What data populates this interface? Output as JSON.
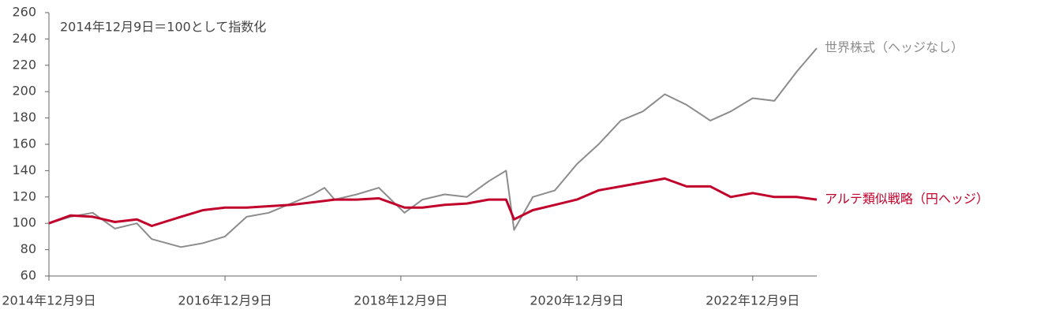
{
  "chart_data": {
    "type": "line",
    "annotation": "2014年12月9日＝100として指数化",
    "x": [
      "2014-12-09",
      "2015-03-09",
      "2015-06-09",
      "2015-09-09",
      "2015-12-09",
      "2016-02-09",
      "2016-06-09",
      "2016-09-09",
      "2016-12-09",
      "2017-03-09",
      "2017-06-09",
      "2017-09-09",
      "2017-12-09",
      "2018-01-26",
      "2018-03-09",
      "2018-06-09",
      "2018-09-09",
      "2018-12-24",
      "2019-03-09",
      "2019-06-09",
      "2019-09-09",
      "2019-12-09",
      "2020-02-19",
      "2020-03-23",
      "2020-06-09",
      "2020-09-09",
      "2020-12-09",
      "2021-03-09",
      "2021-06-09",
      "2021-09-09",
      "2021-12-09",
      "2022-03-09",
      "2022-06-16",
      "2022-09-09",
      "2022-12-09",
      "2023-03-09",
      "2023-06-09",
      "2023-09-01"
    ],
    "series": [
      {
        "name": "世界株式（ヘッジなし）",
        "color": "#8c8c8c",
        "values": [
          100,
          105,
          108,
          96,
          100,
          88,
          82,
          85,
          90,
          105,
          108,
          115,
          122,
          127,
          118,
          122,
          127,
          108,
          118,
          122,
          120,
          132,
          140,
          95,
          120,
          125,
          145,
          160,
          178,
          185,
          198,
          190,
          178,
          185,
          195,
          193,
          215,
          233
        ]
      },
      {
        "name": "アルテ類似戦略（円ヘッジ）",
        "color": "#c0002a",
        "values": [
          100,
          106,
          105,
          101,
          103,
          98,
          105,
          110,
          112,
          112,
          113,
          114,
          116,
          117,
          118,
          118,
          119,
          112,
          112,
          114,
          115,
          118,
          118,
          103,
          110,
          114,
          118,
          125,
          128,
          131,
          134,
          128,
          128,
          120,
          123,
          120,
          120,
          118
        ]
      }
    ],
    "xlim": [
      "2014-12-09",
      "2023-09-01"
    ],
    "xticks": [
      {
        "value": "2014-12-09",
        "label": "2014年12月9日"
      },
      {
        "value": "2016-12-09",
        "label": "2016年12月9日"
      },
      {
        "value": "2018-12-09",
        "label": "2018年12月9日"
      },
      {
        "value": "2020-12-09",
        "label": "2020年12月9日"
      },
      {
        "value": "2022-12-09",
        "label": "2022年12月9日"
      }
    ],
    "ylim": [
      60,
      260
    ],
    "yticks": [
      60,
      80,
      100,
      120,
      140,
      160,
      180,
      200,
      220,
      240,
      260
    ],
    "grid": false
  }
}
